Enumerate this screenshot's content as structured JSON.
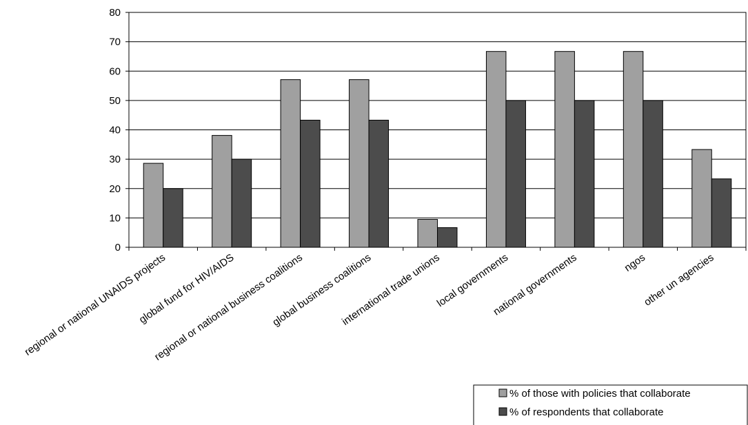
{
  "chart_data": {
    "type": "bar",
    "title": "",
    "xlabel": "",
    "ylabel": "",
    "ylim": [
      0,
      80
    ],
    "yticks": [
      0,
      10,
      20,
      30,
      40,
      50,
      60,
      70,
      80
    ],
    "grid": true,
    "legend_position": "bottom-right",
    "categories": [
      "regional or national UNAIDS projects",
      "global fund for HIV/AIDS",
      "regional or national business coalitions",
      "global business coalitions",
      "international trade unions",
      "local governments",
      "national governments",
      "ngos",
      "other un agencies"
    ],
    "series": [
      {
        "name": "% of those with policies that collaborate",
        "color": "#a0a0a0",
        "values": [
          28.6,
          38.1,
          57.1,
          57.1,
          9.5,
          66.7,
          66.7,
          66.7,
          33.3
        ]
      },
      {
        "name": "% of respondents that collaborate",
        "color": "#4c4c4c",
        "values": [
          20.0,
          30.0,
          43.3,
          43.3,
          6.7,
          50.0,
          50.0,
          50.0,
          23.3
        ]
      }
    ]
  }
}
